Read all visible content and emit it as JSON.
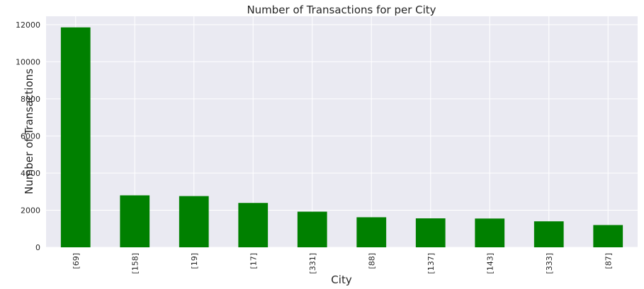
{
  "chart_data": {
    "type": "bar",
    "title": "Number of Transactions for per City",
    "xlabel": "City",
    "ylabel": "Number of Transactions",
    "categories": [
      "[69]",
      "[158]",
      "[19]",
      "[17]",
      "[331]",
      "[88]",
      "[137]",
      "[143]",
      "[333]",
      "[87]"
    ],
    "values": [
      11850,
      2800,
      2760,
      2390,
      1920,
      1620,
      1560,
      1550,
      1400,
      1200
    ],
    "ylim": [
      0,
      12450
    ],
    "yticks": [
      0,
      2000,
      4000,
      6000,
      8000,
      10000,
      12000
    ],
    "grid": true,
    "legend": "none",
    "colors": {
      "bar": "#008000",
      "plot_background": "#EAEAF2",
      "grid": "#FFFFFF"
    }
  }
}
